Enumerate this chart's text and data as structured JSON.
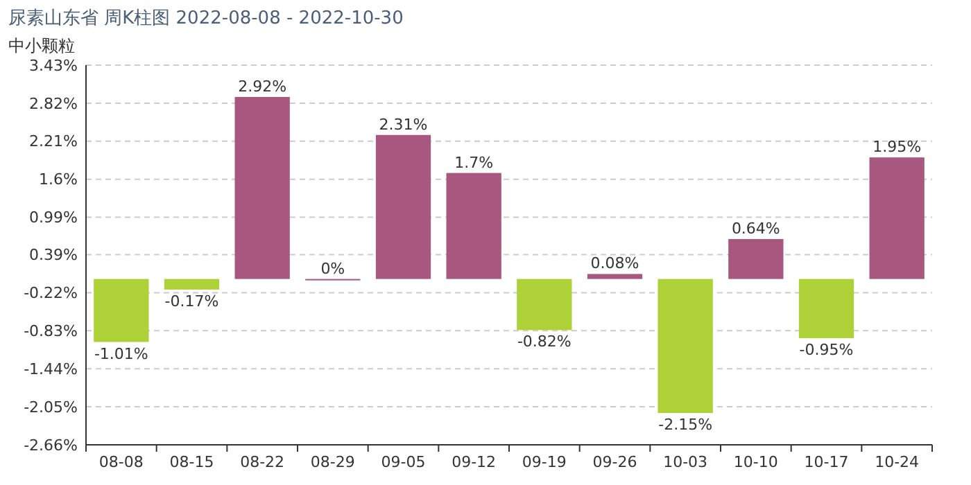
{
  "chart_data": {
    "type": "bar",
    "title": "尿素山东省  周K柱图  2022-08-08  -  2022-10-30",
    "subtitle": "中小颗粒",
    "categories": [
      "08-08",
      "08-15",
      "08-22",
      "08-29",
      "09-05",
      "09-12",
      "09-19",
      "09-26",
      "10-03",
      "10-10",
      "10-17",
      "10-24"
    ],
    "values": [
      -1.01,
      -0.17,
      2.92,
      0,
      2.31,
      1.7,
      -0.82,
      0.08,
      -2.15,
      0.64,
      -0.95,
      1.95
    ],
    "value_labels": [
      "-1.01%",
      "-0.17%",
      "2.92%",
      "0%",
      "2.31%",
      "1.7%",
      "-0.82%",
      "0.08%",
      "-2.15%",
      "0.64%",
      "-0.95%",
      "1.95%"
    ],
    "colors": [
      "#add136",
      "#add136",
      "#a8577e",
      "#a8577e",
      "#a8577e",
      "#a8577e",
      "#add136",
      "#a8577e",
      "#add136",
      "#a8577e",
      "#add136",
      "#a8577e"
    ],
    "ylim": [
      -2.66,
      3.43
    ],
    "yticks": [
      {
        "value": -2.66,
        "label": "-2.66%"
      },
      {
        "value": -2.05,
        "label": "-2.05%"
      },
      {
        "value": -1.44,
        "label": "-1.44%"
      },
      {
        "value": -0.83,
        "label": "-0.83%"
      },
      {
        "value": -0.22,
        "label": "-0.22%"
      },
      {
        "value": 0.39,
        "label": "0.39%"
      },
      {
        "value": 0.99,
        "label": "0.99%"
      },
      {
        "value": 1.6,
        "label": "1.6%"
      },
      {
        "value": 2.21,
        "label": "2.21%"
      },
      {
        "value": 2.82,
        "label": "2.82%"
      },
      {
        "value": 3.43,
        "label": "3.43%"
      }
    ],
    "grid": "y"
  }
}
